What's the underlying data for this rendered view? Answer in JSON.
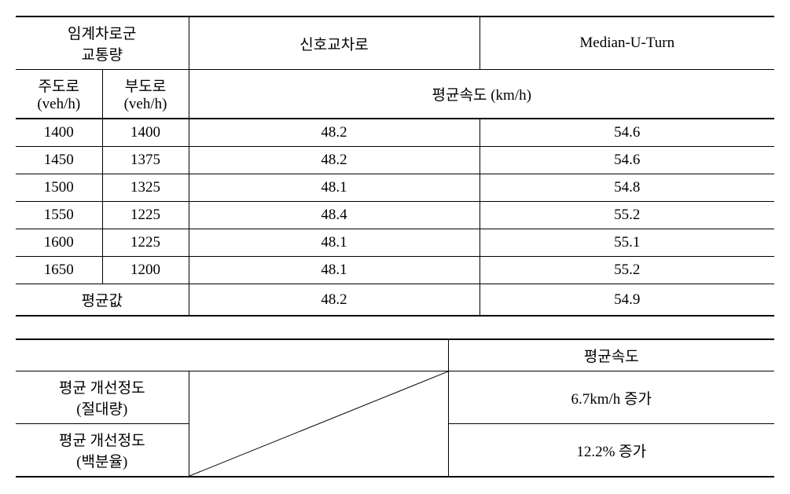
{
  "mainTable": {
    "header1": {
      "c1": "임계차로군\n교통량",
      "c2": "신호교차로",
      "c3": "Median-U-Turn"
    },
    "header2": {
      "c1a": "주도로\n(veh/h)",
      "c1b": "부도로\n(veh/h)",
      "c2merged": "평균속도 (km/h)"
    },
    "rows": [
      {
        "a": "1400",
        "b": "1400",
        "s": "48.2",
        "m": "54.6"
      },
      {
        "a": "1450",
        "b": "1375",
        "s": "48.2",
        "m": "54.6"
      },
      {
        "a": "1500",
        "b": "1325",
        "s": "48.1",
        "m": "54.8"
      },
      {
        "a": "1550",
        "b": "1225",
        "s": "48.4",
        "m": "55.2"
      },
      {
        "a": "1600",
        "b": "1225",
        "s": "48.1",
        "m": "55.1"
      },
      {
        "a": "1650",
        "b": "1200",
        "s": "48.1",
        "m": "55.2"
      }
    ],
    "avgRow": {
      "label": "평균값",
      "s": "48.2",
      "m": "54.9"
    }
  },
  "summaryTable": {
    "header": "평균속도",
    "row1": {
      "label": "평균 개선정도\n(절대량)",
      "val": "6.7km/h 증가"
    },
    "row2": {
      "label": "평균 개선정도\n(백분율)",
      "val": "12.2% 증가"
    }
  },
  "style": {
    "col_a_width": 110,
    "col_b_width": 110,
    "col_s_width": 370,
    "col_m_width": 375,
    "summary_label_width": 220,
    "summary_diag_width": 330,
    "summary_val_width": 415,
    "text_color": "#000000",
    "bg_color": "#ffffff",
    "font_size": 19,
    "line_color": "#000000"
  }
}
